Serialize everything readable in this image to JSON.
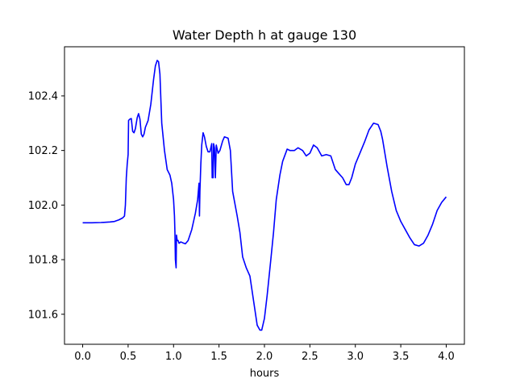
{
  "chart_data": {
    "type": "line",
    "title": "Water Depth h at gauge 130",
    "xlabel": "hours",
    "ylabel": "",
    "xlim": [
      -0.2,
      4.2
    ],
    "ylim": [
      101.49,
      102.58
    ],
    "x_ticks": [
      {
        "value": 0.0,
        "label": "0.0"
      },
      {
        "value": 0.5,
        "label": "0.5"
      },
      {
        "value": 1.0,
        "label": "1.0"
      },
      {
        "value": 1.5,
        "label": "1.5"
      },
      {
        "value": 2.0,
        "label": "2.0"
      },
      {
        "value": 2.5,
        "label": "2.5"
      },
      {
        "value": 3.0,
        "label": "3.0"
      },
      {
        "value": 3.5,
        "label": "3.5"
      },
      {
        "value": 4.0,
        "label": "4.0"
      }
    ],
    "y_ticks": [
      {
        "value": 101.6,
        "label": "101.6"
      },
      {
        "value": 101.8,
        "label": "101.8"
      },
      {
        "value": 102.0,
        "label": "102.0"
      },
      {
        "value": 102.2,
        "label": "102.2"
      },
      {
        "value": 102.4,
        "label": "102.4"
      }
    ],
    "grid": false,
    "series": [
      {
        "color": "#0000ff",
        "points": [
          [
            0.0,
            101.935
          ],
          [
            0.1,
            101.935
          ],
          [
            0.2,
            101.936
          ],
          [
            0.3,
            101.938
          ],
          [
            0.35,
            101.94
          ],
          [
            0.4,
            101.946
          ],
          [
            0.44,
            101.953
          ],
          [
            0.46,
            101.96
          ],
          [
            0.47,
            102.0
          ],
          [
            0.48,
            102.1
          ],
          [
            0.49,
            102.15
          ],
          [
            0.5,
            102.185
          ],
          [
            0.505,
            102.31
          ],
          [
            0.52,
            102.315
          ],
          [
            0.535,
            102.317
          ],
          [
            0.55,
            102.27
          ],
          [
            0.565,
            102.265
          ],
          [
            0.58,
            102.28
          ],
          [
            0.6,
            102.32
          ],
          [
            0.615,
            102.335
          ],
          [
            0.63,
            102.315
          ],
          [
            0.645,
            102.26
          ],
          [
            0.66,
            102.25
          ],
          [
            0.675,
            102.26
          ],
          [
            0.69,
            102.285
          ],
          [
            0.72,
            102.31
          ],
          [
            0.75,
            102.37
          ],
          [
            0.78,
            102.46
          ],
          [
            0.8,
            102.51
          ],
          [
            0.82,
            102.53
          ],
          [
            0.835,
            102.525
          ],
          [
            0.85,
            102.48
          ],
          [
            0.87,
            102.3
          ],
          [
            0.9,
            102.2
          ],
          [
            0.93,
            102.13
          ],
          [
            0.96,
            102.11
          ],
          [
            0.98,
            102.08
          ],
          [
            1.0,
            102.02
          ],
          [
            1.01,
            101.96
          ],
          [
            1.015,
            101.9
          ],
          [
            1.02,
            101.8
          ],
          [
            1.028,
            101.77
          ],
          [
            1.032,
            101.89
          ],
          [
            1.04,
            101.87
          ],
          [
            1.05,
            101.87
          ],
          [
            1.06,
            101.86
          ],
          [
            1.08,
            101.865
          ],
          [
            1.1,
            101.862
          ],
          [
            1.13,
            101.858
          ],
          [
            1.16,
            101.87
          ],
          [
            1.2,
            101.91
          ],
          [
            1.24,
            101.97
          ],
          [
            1.265,
            102.02
          ],
          [
            1.28,
            102.08
          ],
          [
            1.285,
            101.96
          ],
          [
            1.29,
            102.05
          ],
          [
            1.3,
            102.15
          ],
          [
            1.31,
            102.22
          ],
          [
            1.325,
            102.265
          ],
          [
            1.34,
            102.25
          ],
          [
            1.36,
            102.215
          ],
          [
            1.38,
            102.195
          ],
          [
            1.4,
            102.195
          ],
          [
            1.42,
            102.225
          ],
          [
            1.425,
            102.1
          ],
          [
            1.435,
            102.1
          ],
          [
            1.44,
            102.225
          ],
          [
            1.45,
            102.21
          ],
          [
            1.46,
            102.1
          ],
          [
            1.47,
            102.22
          ],
          [
            1.49,
            102.19
          ],
          [
            1.51,
            102.2
          ],
          [
            1.54,
            102.235
          ],
          [
            1.56,
            102.25
          ],
          [
            1.6,
            102.245
          ],
          [
            1.625,
            102.2
          ],
          [
            1.65,
            102.05
          ],
          [
            1.7,
            101.96
          ],
          [
            1.73,
            101.9
          ],
          [
            1.76,
            101.81
          ],
          [
            1.8,
            101.77
          ],
          [
            1.84,
            101.74
          ],
          [
            1.88,
            101.65
          ],
          [
            1.92,
            101.56
          ],
          [
            1.95,
            101.542
          ],
          [
            1.97,
            101.542
          ],
          [
            2.0,
            101.585
          ],
          [
            2.03,
            101.67
          ],
          [
            2.07,
            101.8
          ],
          [
            2.1,
            101.9
          ],
          [
            2.13,
            102.02
          ],
          [
            2.17,
            102.11
          ],
          [
            2.2,
            102.16
          ],
          [
            2.25,
            102.205
          ],
          [
            2.28,
            102.2
          ],
          [
            2.33,
            102.2
          ],
          [
            2.37,
            102.21
          ],
          [
            2.42,
            102.2
          ],
          [
            2.46,
            102.18
          ],
          [
            2.5,
            102.19
          ],
          [
            2.54,
            102.22
          ],
          [
            2.58,
            102.21
          ],
          [
            2.63,
            102.18
          ],
          [
            2.68,
            102.185
          ],
          [
            2.73,
            102.18
          ],
          [
            2.78,
            102.13
          ],
          [
            2.82,
            102.115
          ],
          [
            2.86,
            102.1
          ],
          [
            2.9,
            102.075
          ],
          [
            2.93,
            102.075
          ],
          [
            2.96,
            102.1
          ],
          [
            3.0,
            102.15
          ],
          [
            3.05,
            102.19
          ],
          [
            3.1,
            102.23
          ],
          [
            3.15,
            102.275
          ],
          [
            3.2,
            102.3
          ],
          [
            3.25,
            102.295
          ],
          [
            3.28,
            102.27
          ],
          [
            3.3,
            102.24
          ],
          [
            3.35,
            102.14
          ],
          [
            3.4,
            102.05
          ],
          [
            3.45,
            101.98
          ],
          [
            3.5,
            101.94
          ],
          [
            3.55,
            101.91
          ],
          [
            3.6,
            101.88
          ],
          [
            3.65,
            101.855
          ],
          [
            3.7,
            101.85
          ],
          [
            3.75,
            101.86
          ],
          [
            3.8,
            101.89
          ],
          [
            3.85,
            101.93
          ],
          [
            3.9,
            101.98
          ],
          [
            3.95,
            102.01
          ],
          [
            4.0,
            102.03
          ]
        ]
      }
    ]
  }
}
